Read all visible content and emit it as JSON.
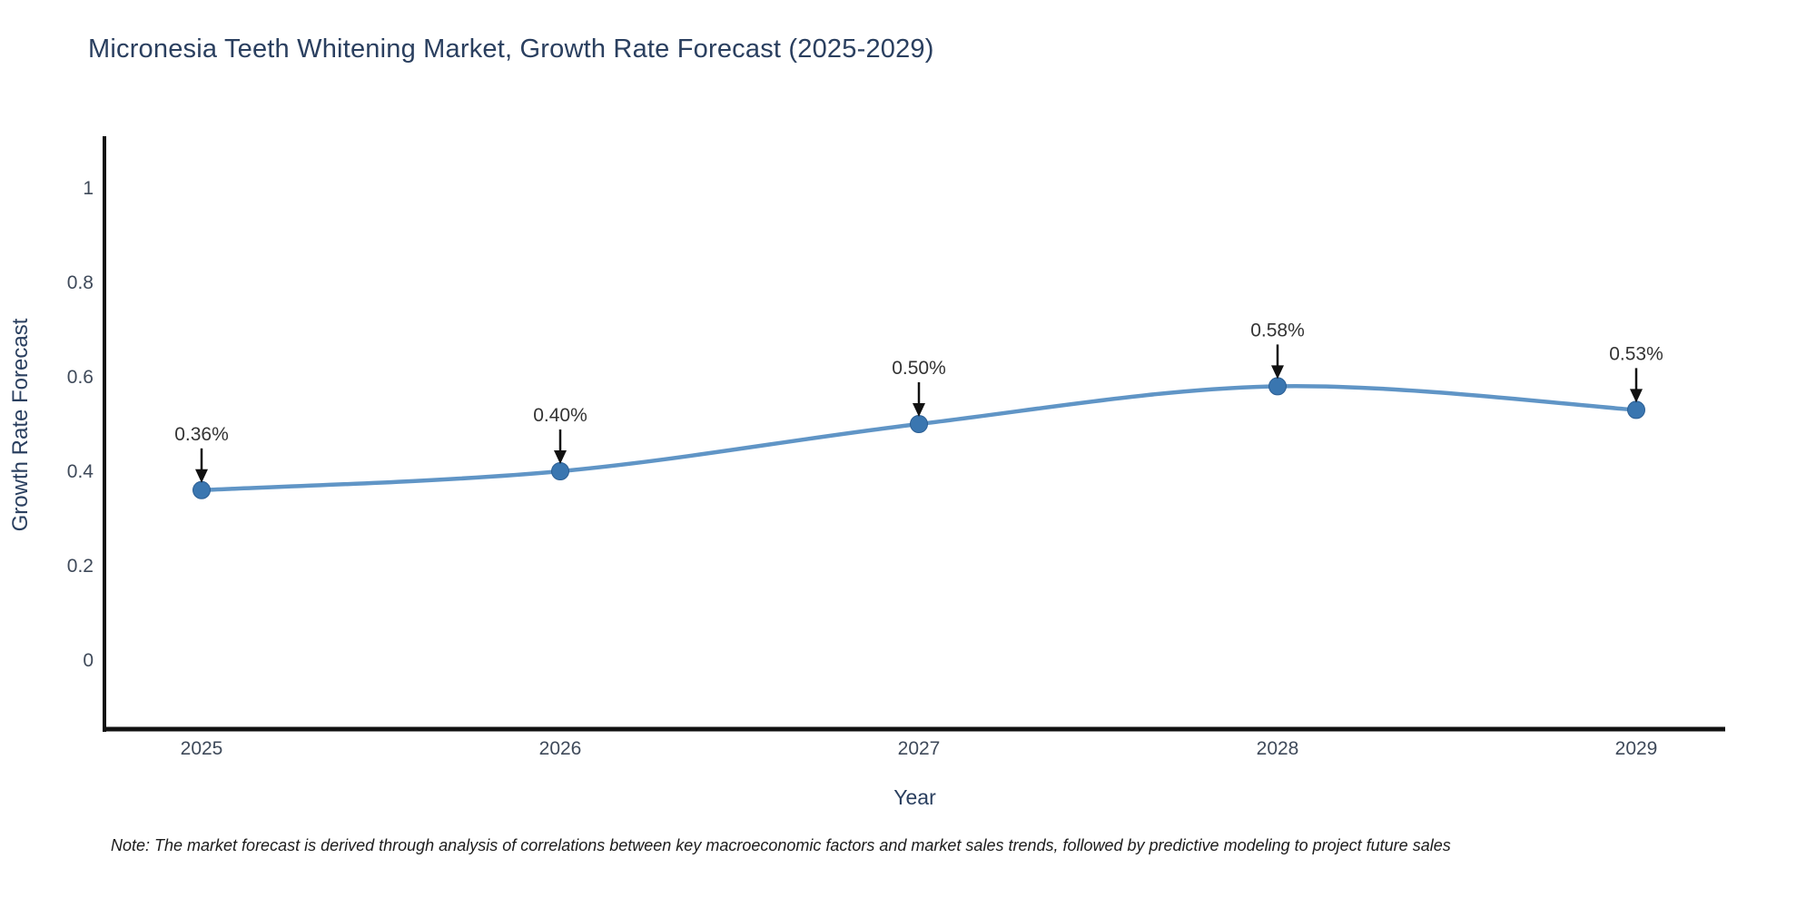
{
  "note": {
    "text": "Note: The market forecast is derived through analysis of correlations between key macroeconomic factors and market sales trends, followed by predictive modeling to project future sales"
  },
  "chart_data": {
    "type": "line",
    "line_shape": "spline",
    "markers": true,
    "title": "Micronesia Teeth Whitening Market, Growth Rate Forecast (2025-2029)",
    "xlabel": "Year",
    "ylabel": "Growth Rate Forecast",
    "categories": [
      "2025",
      "2026",
      "2027",
      "2028",
      "2029"
    ],
    "values": [
      0.36,
      0.4,
      0.5,
      0.58,
      0.53
    ],
    "point_labels": [
      "0.36%",
      "0.40%",
      "0.50%",
      "0.58%",
      "0.53%"
    ],
    "ytick_labels": [
      "0",
      "0.2",
      "0.4",
      "0.6",
      "0.8",
      "1"
    ],
    "ytick_values": [
      0,
      0.2,
      0.4,
      0.6,
      0.8,
      1
    ],
    "ylim": [
      -0.15,
      1.11
    ],
    "grid": false,
    "legend_position": "none",
    "annotations_have_arrows": true,
    "colors": {
      "background": "#ffffff",
      "line": "#4a86be",
      "marker": "#3a76b0",
      "marker_edge": "#2b5e93",
      "axis_line": "#111111",
      "tick_text": "#3f4a5a",
      "axis_title_text": "#2a3f5f",
      "chart_title_text": "#2a3f5f",
      "annotation_text": "#333333",
      "arrow": "#111111"
    }
  }
}
